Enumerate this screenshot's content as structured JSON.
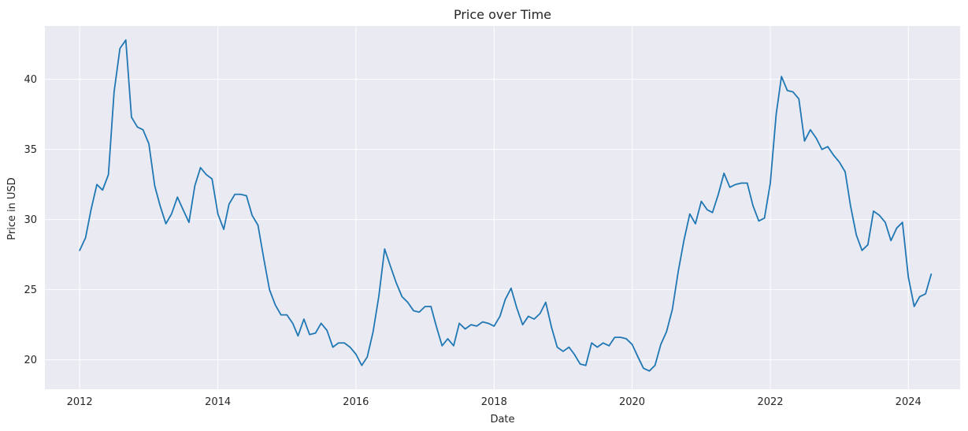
{
  "chart_data": {
    "type": "line",
    "title": "Price over Time",
    "xlabel": "Date",
    "ylabel": "Price in USD",
    "xlim": [
      "2011-07-01",
      "2024-10-01"
    ],
    "ylim": [
      17.9,
      43.8
    ],
    "xticks": [
      "2012",
      "2014",
      "2016",
      "2018",
      "2020",
      "2022",
      "2024"
    ],
    "yticks": [
      20,
      25,
      30,
      35,
      40
    ],
    "grid": true,
    "background": "#eaeaf2",
    "line_color": "#1f77b4",
    "x": [
      "2012-01-01",
      "2012-02-01",
      "2012-03-01",
      "2012-04-01",
      "2012-05-01",
      "2012-06-01",
      "2012-07-01",
      "2012-08-01",
      "2012-09-01",
      "2012-10-01",
      "2012-11-01",
      "2012-12-01",
      "2013-01-01",
      "2013-02-01",
      "2013-03-01",
      "2013-04-01",
      "2013-05-01",
      "2013-06-01",
      "2013-07-01",
      "2013-08-01",
      "2013-09-01",
      "2013-10-01",
      "2013-11-01",
      "2013-12-01",
      "2014-01-01",
      "2014-02-01",
      "2014-03-01",
      "2014-04-01",
      "2014-05-01",
      "2014-06-01",
      "2014-07-01",
      "2014-08-01",
      "2014-09-01",
      "2014-10-01",
      "2014-11-01",
      "2014-12-01",
      "2015-01-01",
      "2015-02-01",
      "2015-03-01",
      "2015-04-01",
      "2015-05-01",
      "2015-06-01",
      "2015-07-01",
      "2015-08-01",
      "2015-09-01",
      "2015-10-01",
      "2015-11-01",
      "2015-12-01",
      "2016-01-01",
      "2016-02-01",
      "2016-03-01",
      "2016-04-01",
      "2016-05-01",
      "2016-06-01",
      "2016-07-01",
      "2016-08-01",
      "2016-09-01",
      "2016-10-01",
      "2016-11-01",
      "2016-12-01",
      "2017-01-01",
      "2017-02-01",
      "2017-03-01",
      "2017-04-01",
      "2017-05-01",
      "2017-06-01",
      "2017-07-01",
      "2017-08-01",
      "2017-09-01",
      "2017-10-01",
      "2017-11-01",
      "2017-12-01",
      "2018-01-01",
      "2018-02-01",
      "2018-03-01",
      "2018-04-01",
      "2018-05-01",
      "2018-06-01",
      "2018-07-01",
      "2018-08-01",
      "2018-09-01",
      "2018-10-01",
      "2018-11-01",
      "2018-12-01",
      "2019-01-01",
      "2019-02-01",
      "2019-03-01",
      "2019-04-01",
      "2019-05-01",
      "2019-06-01",
      "2019-07-01",
      "2019-08-01",
      "2019-09-01",
      "2019-10-01",
      "2019-11-01",
      "2019-12-01",
      "2020-01-01",
      "2020-02-01",
      "2020-03-01",
      "2020-04-01",
      "2020-05-01",
      "2020-06-01",
      "2020-07-01",
      "2020-08-01",
      "2020-09-01",
      "2020-10-01",
      "2020-11-01",
      "2020-12-01",
      "2021-01-01",
      "2021-02-01",
      "2021-03-01",
      "2021-04-01",
      "2021-05-01",
      "2021-06-01",
      "2021-07-01",
      "2021-08-01",
      "2021-09-01",
      "2021-10-01",
      "2021-11-01",
      "2021-12-01",
      "2022-01-01",
      "2022-02-01",
      "2022-03-01",
      "2022-04-01",
      "2022-05-01",
      "2022-06-01",
      "2022-07-01",
      "2022-08-01",
      "2022-09-01",
      "2022-10-01",
      "2022-11-01",
      "2022-12-01",
      "2023-01-01",
      "2023-02-01",
      "2023-03-01",
      "2023-04-01",
      "2023-05-01",
      "2023-06-01",
      "2023-07-01",
      "2023-08-01",
      "2023-09-01",
      "2023-10-01",
      "2023-11-01",
      "2023-12-01",
      "2024-01-01",
      "2024-02-01",
      "2024-03-01",
      "2024-04-01",
      "2024-05-01"
    ],
    "series": [
      {
        "values": [
          27.8,
          28.7,
          30.7,
          32.5,
          32.1,
          33.2,
          39.1,
          42.2,
          42.8,
          37.3,
          36.6,
          36.4,
          35.4,
          32.4,
          31.0,
          29.7,
          30.4,
          31.6,
          30.7,
          29.8,
          32.4,
          33.7,
          33.2,
          32.9,
          30.4,
          29.3,
          31.1,
          31.8,
          31.8,
          31.7,
          30.3,
          29.6,
          27.2,
          25.0,
          23.9,
          23.2,
          23.2,
          22.6,
          21.7,
          22.9,
          21.8,
          21.9,
          22.6,
          22.1,
          20.9,
          21.2,
          21.2,
          20.9,
          20.4,
          19.6,
          20.2,
          22.0,
          24.5,
          27.9,
          26.7,
          25.5,
          24.5,
          24.1,
          23.5,
          23.4,
          23.8,
          23.8,
          22.4,
          21.0,
          21.5,
          21.0,
          22.6,
          22.2,
          22.5,
          22.4,
          22.7,
          22.6,
          22.4,
          23.1,
          24.3,
          25.1,
          23.7,
          22.5,
          23.1,
          22.9,
          23.3,
          24.1,
          22.3,
          20.9,
          20.6,
          20.9,
          20.4,
          19.7,
          19.6,
          21.2,
          20.9,
          21.2,
          21.0,
          21.6,
          21.6,
          21.5,
          21.1,
          20.2,
          19.4,
          19.2,
          19.6,
          21.1,
          22.0,
          23.6,
          26.3,
          28.5,
          30.4,
          29.7,
          31.3,
          30.7,
          30.5,
          31.8,
          33.3,
          32.3,
          32.5,
          32.6,
          32.6,
          31.0,
          29.9,
          30.1,
          32.6,
          37.5,
          40.2,
          39.2,
          39.1,
          38.6,
          35.6,
          36.4,
          35.8,
          35.0,
          35.2,
          34.6,
          34.1,
          33.4,
          31.0,
          28.9,
          27.8,
          28.2,
          30.6,
          30.3,
          29.8,
          28.5,
          29.4,
          29.8,
          25.9,
          23.8,
          24.5,
          24.7,
          26.1
        ]
      }
    ]
  }
}
